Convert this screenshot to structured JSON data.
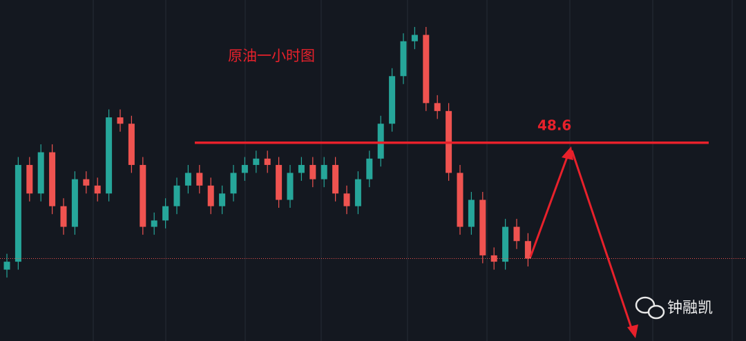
{
  "chart_data": {
    "type": "candlestick",
    "title": "原油一小时图",
    "level": 48.6,
    "up_color": "#26a69a",
    "down_color": "#ef5350",
    "level_color": "#e8212b",
    "ylim": [
      47.35,
      49.5
    ],
    "open": [
      47.8,
      47.85,
      48.46,
      48.28,
      48.54,
      48.2,
      48.07,
      48.37,
      48.33,
      48.28,
      48.76,
      48.72,
      48.46,
      48.07,
      48.11,
      48.2,
      48.33,
      48.41,
      48.33,
      48.2,
      48.28,
      48.41,
      48.46,
      48.5,
      48.46,
      48.24,
      48.41,
      48.46,
      48.37,
      48.46,
      48.28,
      48.2,
      48.37,
      48.5,
      48.72,
      49.02,
      49.24,
      49.28,
      48.85,
      48.8,
      48.41,
      48.07,
      48.24,
      47.89,
      47.85,
      48.07,
      47.98
    ],
    "high": [
      47.9,
      48.51,
      48.51,
      48.59,
      48.59,
      48.25,
      48.42,
      48.42,
      48.38,
      48.81,
      48.81,
      48.77,
      48.51,
      48.16,
      48.25,
      48.38,
      48.46,
      48.46,
      48.38,
      48.33,
      48.46,
      48.51,
      48.55,
      48.55,
      48.51,
      48.46,
      48.51,
      48.51,
      48.51,
      48.51,
      48.33,
      48.42,
      48.55,
      48.77,
      49.07,
      49.29,
      49.33,
      49.33,
      48.9,
      48.85,
      48.46,
      48.29,
      48.29,
      47.94,
      48.12,
      48.12,
      48.03
    ],
    "low": [
      47.75,
      47.8,
      48.23,
      48.23,
      48.15,
      48.02,
      48.02,
      48.28,
      48.23,
      48.23,
      48.67,
      48.41,
      48.02,
      48.02,
      48.06,
      48.15,
      48.28,
      48.28,
      48.15,
      48.15,
      48.23,
      48.36,
      48.41,
      48.41,
      48.19,
      48.19,
      48.36,
      48.32,
      48.32,
      48.23,
      48.15,
      48.15,
      48.32,
      48.45,
      48.67,
      48.97,
      49.19,
      48.8,
      48.75,
      48.36,
      48.02,
      48.02,
      47.84,
      47.8,
      47.8,
      47.93,
      47.82
    ],
    "close": [
      47.85,
      48.46,
      48.28,
      48.54,
      48.2,
      48.07,
      48.37,
      48.33,
      48.28,
      48.76,
      48.72,
      48.46,
      48.07,
      48.11,
      48.2,
      48.33,
      48.41,
      48.33,
      48.2,
      48.28,
      48.41,
      48.46,
      48.5,
      48.46,
      48.24,
      48.41,
      48.46,
      48.37,
      48.46,
      48.28,
      48.2,
      48.37,
      48.5,
      48.72,
      49.02,
      49.24,
      49.28,
      48.85,
      48.8,
      48.41,
      48.07,
      48.24,
      47.89,
      47.85,
      48.07,
      47.98,
      47.87
    ],
    "watermark": "钟融凯"
  }
}
